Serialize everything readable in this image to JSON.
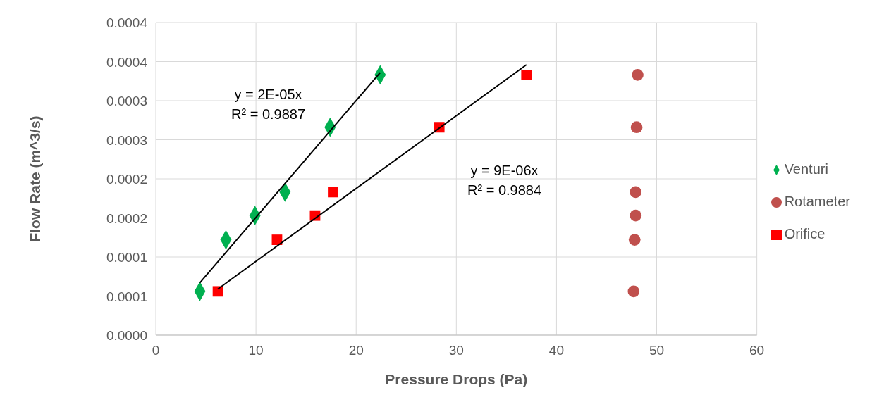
{
  "chart_data": {
    "type": "scatter",
    "xlabel": "Pressure Drops (Pa)",
    "ylabel": "Flow Rate (m^3/s)",
    "xlim": [
      0,
      60
    ],
    "xticks": [
      0,
      10,
      20,
      30,
      40,
      50,
      60
    ],
    "ylim": [
      0,
      0.0004
    ],
    "yticks": [
      {
        "value": 0,
        "label": "0.0000"
      },
      {
        "value": 5e-05,
        "label": "0.0001"
      },
      {
        "value": 0.0001,
        "label": "0.0001"
      },
      {
        "value": 0.00015,
        "label": "0.0002"
      },
      {
        "value": 0.0002,
        "label": "0.0002"
      },
      {
        "value": 0.00025,
        "label": "0.0003"
      },
      {
        "value": 0.0003,
        "label": "0.0003"
      },
      {
        "value": 0.00035,
        "label": "0.0004"
      },
      {
        "value": 0.0004,
        "label": "0.0004"
      }
    ],
    "grid": true,
    "legend": "right",
    "series": [
      {
        "name": "Venturi",
        "color": "#00b050",
        "marker": "diamond",
        "x": [
          4.4,
          7.0,
          9.9,
          12.9,
          17.4,
          22.4
        ],
        "values": [
          5.6e-05,
          0.000122,
          0.000153,
          0.000183,
          0.000266,
          0.000333
        ]
      },
      {
        "name": "Rotameter",
        "color": "#c0504d",
        "marker": "circle",
        "x": [
          47.7,
          47.8,
          47.9,
          47.9,
          48.0,
          48.1
        ],
        "values": [
          5.6e-05,
          0.000122,
          0.000153,
          0.000183,
          0.000266,
          0.000333
        ]
      },
      {
        "name": "Orifice",
        "color": "#ff0000",
        "marker": "square",
        "x": [
          6.2,
          12.1,
          15.9,
          17.7,
          28.3,
          37.0
        ],
        "values": [
          5.6e-05,
          0.000122,
          0.000153,
          0.000183,
          0.000266,
          0.000333
        ]
      },
      {
        "type": "line",
        "color": "#000000",
        "marker": "none",
        "x": [
          4.4,
          22.4
        ],
        "values": [
          6.7e-05,
          0.000336
        ]
      },
      {
        "type": "line",
        "color": "#000000",
        "marker": "none",
        "x": [
          6.2,
          37.0
        ],
        "values": [
          5.9e-05,
          0.000346
        ]
      }
    ],
    "annotations": [
      "y = 2E-05x\nR² = 0.9887",
      "y = 9E-06x\nR² = 0.9884"
    ]
  }
}
